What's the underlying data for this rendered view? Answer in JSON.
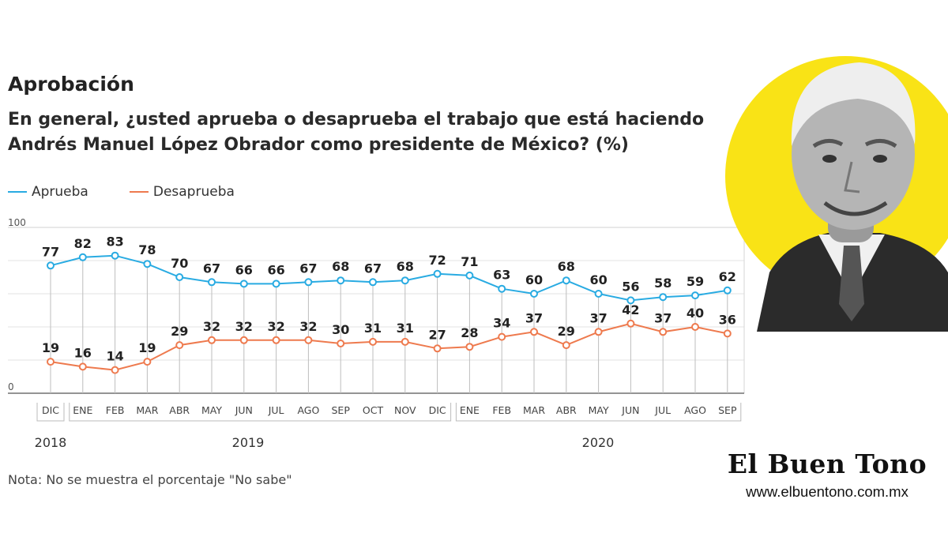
{
  "header": {
    "title": "Aprobación",
    "subtitle": "En general, ¿usted aprueba o desaprueba el trabajo que está haciendo Andrés Manuel López Obrador como presidente de México?  (%)"
  },
  "note": "Nota: No se muestra el porcentaje \"No sabe\"",
  "brand": {
    "name": "El Buen Tono",
    "url": "www.elbuentono.com.mx"
  },
  "colors": {
    "aprueba": "#29abe2",
    "desaprueba": "#ee7a4e",
    "accent_circle": "#f9e316"
  },
  "chart_data": {
    "type": "line",
    "categories": [
      "DIC",
      "ENE",
      "FEB",
      "MAR",
      "ABR",
      "MAY",
      "JUN",
      "JUL",
      "AGO",
      "SEP",
      "OCT",
      "NOV",
      "DIC",
      "ENE",
      "FEB",
      "MAR",
      "ABR",
      "MAY",
      "JUN",
      "JUL",
      "AGO",
      "SEP"
    ],
    "years": [
      {
        "label": "2018",
        "from": 0,
        "to": 0
      },
      {
        "label": "2019",
        "from": 1,
        "to": 12
      },
      {
        "label": "2020",
        "from": 13,
        "to": 21
      }
    ],
    "series": [
      {
        "name": "Aprueba",
        "color": "#29abe2",
        "values": [
          77,
          82,
          83,
          78,
          70,
          67,
          66,
          66,
          67,
          68,
          67,
          68,
          72,
          71,
          63,
          60,
          68,
          60,
          56,
          58,
          59,
          62
        ]
      },
      {
        "name": "Desaprueba",
        "color": "#ee7a4e",
        "values": [
          19,
          16,
          14,
          19,
          29,
          32,
          32,
          32,
          32,
          30,
          31,
          31,
          27,
          28,
          34,
          37,
          29,
          37,
          42,
          37,
          40,
          36
        ]
      }
    ],
    "ylim": [
      0,
      100
    ],
    "y_ticks": [
      "0",
      "100"
    ],
    "grid": true,
    "legend": "top-left"
  }
}
